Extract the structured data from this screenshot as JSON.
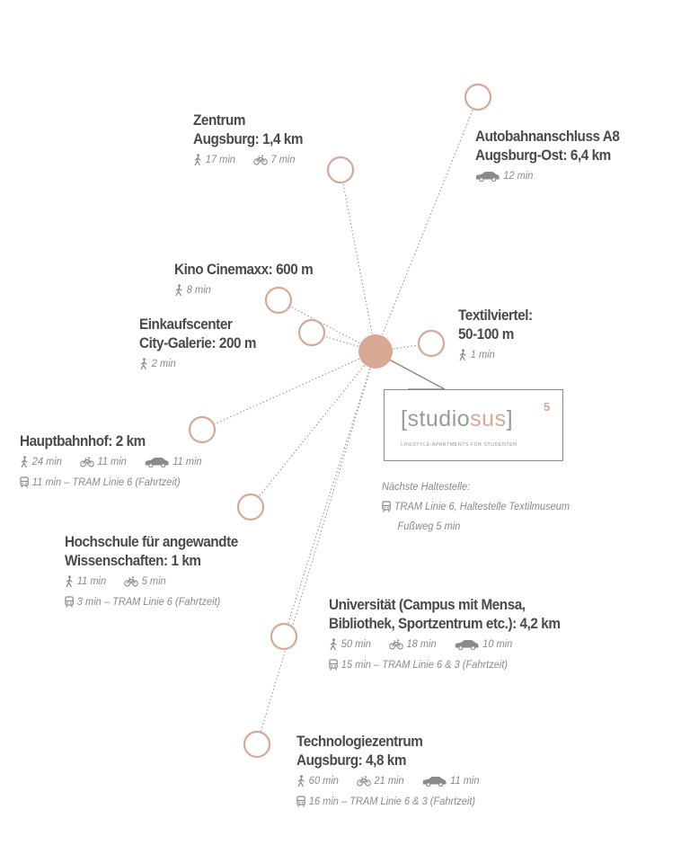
{
  "locations": [
    {
      "id": "zentrum",
      "title": [
        "Zentrum",
        "Augsburg: 1,4 km"
      ],
      "lines": [
        [
          {
            "icon": "walk-icon",
            "text": "17 min"
          },
          {
            "icon": "bike-icon",
            "text": "7 min"
          }
        ]
      ]
    },
    {
      "id": "autobahn",
      "title": [
        "Autobahnanschluss A8",
        "Augsburg-Ost: 6,4 km"
      ],
      "lines": [
        [
          {
            "icon": "car-icon",
            "text": "12 min"
          }
        ]
      ]
    },
    {
      "id": "kino",
      "title": [
        "Kino Cinemaxx: 600 m"
      ],
      "lines": [
        [
          {
            "icon": "walk-icon",
            "text": "8 min"
          }
        ]
      ]
    },
    {
      "id": "einkauf",
      "title": [
        "Einkaufscenter",
        "City-Galerie: 200 m"
      ],
      "lines": [
        [
          {
            "icon": "walk-icon",
            "text": "2 min"
          }
        ]
      ]
    },
    {
      "id": "textil",
      "title": [
        "Textilviertel:",
        "50-100 m"
      ],
      "lines": [
        [
          {
            "icon": "walk-icon",
            "text": "1 min"
          }
        ]
      ]
    },
    {
      "id": "bahnhof",
      "title": [
        "Hauptbahnhof: 2 km"
      ],
      "lines": [
        [
          {
            "icon": "walk-icon",
            "text": "24 min"
          },
          {
            "icon": "bike-icon",
            "text": "11 min"
          },
          {
            "icon": "car-icon",
            "text": "11 min"
          }
        ],
        [
          {
            "icon": "tram-icon",
            "text": "11 min – TRAM Linie 6 (Fahrtzeit)"
          }
        ]
      ]
    },
    {
      "id": "hochschule",
      "title": [
        "Hochschule für angewandte",
        "Wissenschaften: 1 km"
      ],
      "lines": [
        [
          {
            "icon": "walk-icon",
            "text": "11 min"
          },
          {
            "icon": "bike-icon",
            "text": "5 min"
          }
        ],
        [
          {
            "icon": "tram-icon",
            "text": "3 min – TRAM Linie 6 (Fahrtzeit)"
          }
        ]
      ]
    },
    {
      "id": "uni",
      "title": [
        "Universität (Campus mit Mensa,",
        "Bibliothek, Sportzentrum etc.): 4,2 km"
      ],
      "lines": [
        [
          {
            "icon": "walk-icon",
            "text": "50 min"
          },
          {
            "icon": "bike-icon",
            "text": "18 min"
          },
          {
            "icon": "car-icon",
            "text": "10 min"
          }
        ],
        [
          {
            "icon": "tram-icon",
            "text": "15 min – TRAM Linie 6 & 3 (Fahrtzeit)"
          }
        ]
      ]
    },
    {
      "id": "techno",
      "title": [
        "Technologiezentrum",
        "Augsburg: 4,8 km"
      ],
      "lines": [
        [
          {
            "icon": "walk-icon",
            "text": "60 min"
          },
          {
            "icon": "bike-icon",
            "text": "21 min"
          },
          {
            "icon": "car-icon",
            "text": "11 min"
          }
        ],
        [
          {
            "icon": "tram-icon",
            "text": "16 min – TRAM Linie 6 & 3 (Fahrtzeit)"
          }
        ]
      ]
    }
  ],
  "logo": {
    "bracket_open": "[",
    "studio": "studio",
    "sus": "sus",
    "bracket_close": "]",
    "superscript": "5",
    "tagline": "LIFESTYLE-APARTMENTS FÜR STUDENTEN"
  },
  "stop": {
    "heading": "Nächste Haltestelle:",
    "line1": "TRAM Linie 6, Haltestelle Textilmuseum",
    "line2": "Fußweg 5 min"
  },
  "colors": {
    "accent": "#d9a894",
    "text": "#4a4a4a",
    "muted": "#8a8a8a"
  }
}
